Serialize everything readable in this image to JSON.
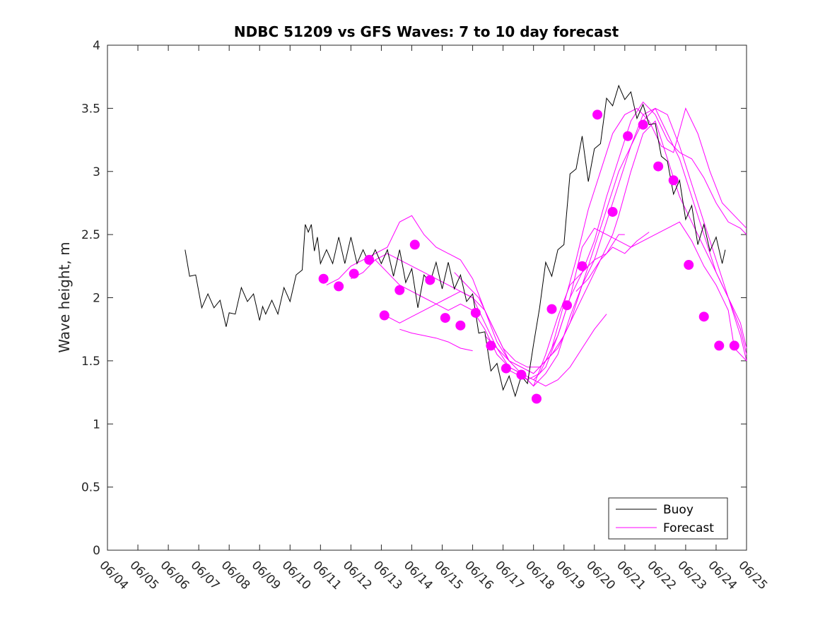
{
  "chart_data": {
    "type": "line",
    "title": "NDBC 51209 vs GFS Waves: 7 to 10 day forecast",
    "xlabel": "",
    "ylabel": "Wave height, m",
    "xlim": [
      "06/04",
      "06/25"
    ],
    "ylim": [
      0,
      4
    ],
    "x_ticks": [
      "06/04",
      "06/05",
      "06/06",
      "06/07",
      "06/08",
      "06/09",
      "06/10",
      "06/11",
      "06/12",
      "06/13",
      "06/14",
      "06/15",
      "06/16",
      "06/17",
      "06/18",
      "06/19",
      "06/20",
      "06/21",
      "06/22",
      "06/23",
      "06/24",
      "06/25"
    ],
    "y_ticks": [
      0,
      0.5,
      1,
      1.5,
      2,
      2.5,
      3,
      3.5,
      4
    ],
    "grid": false,
    "legend": {
      "position": "bottom-right",
      "entries": [
        {
          "label": "Buoy",
          "color": "#000000"
        },
        {
          "label": "Forecast",
          "color": "#ff00ff"
        }
      ]
    },
    "buoy": {
      "name": "Buoy",
      "color": "#000000",
      "x": [
        6.55,
        6.7,
        6.9,
        7.1,
        7.3,
        7.5,
        7.7,
        7.9,
        8.0,
        8.2,
        8.4,
        8.6,
        8.8,
        9.0,
        9.1,
        9.2,
        9.4,
        9.6,
        9.8,
        10.0,
        10.2,
        10.4,
        10.5,
        10.6,
        10.7,
        10.8,
        10.9,
        11.0,
        11.2,
        11.4,
        11.6,
        11.8,
        12.0,
        12.2,
        12.4,
        12.6,
        12.8,
        13.0,
        13.2,
        13.4,
        13.6,
        13.8,
        14.0,
        14.2,
        14.4,
        14.6,
        14.8,
        15.0,
        15.2,
        15.4,
        15.6,
        15.8,
        16.0,
        16.2,
        16.4,
        16.6,
        16.8,
        17.0,
        17.2,
        17.4,
        17.6,
        17.8,
        18.0,
        18.2,
        18.4,
        18.6,
        18.8,
        19.0,
        19.2,
        19.4,
        19.6,
        19.8,
        20.0,
        20.2,
        20.4,
        20.6,
        20.8,
        21.0,
        21.2,
        21.4,
        21.6,
        21.8,
        22.0,
        22.2,
        22.4,
        22.6,
        22.8,
        23.0,
        23.2,
        23.4,
        23.6,
        23.8,
        24.0,
        24.2,
        24.3
      ],
      "y": [
        2.3,
        2.25,
        2.1,
        2.0,
        1.95,
        2.0,
        1.9,
        1.85,
        1.8,
        1.95,
        2.0,
        2.05,
        1.95,
        1.9,
        1.85,
        1.95,
        1.9,
        1.95,
        2.0,
        2.05,
        2.1,
        2.3,
        2.5,
        2.6,
        2.5,
        2.45,
        2.4,
        2.35,
        2.3,
        2.35,
        2.4,
        2.35,
        2.4,
        2.35,
        2.3,
        2.35,
        2.3,
        2.35,
        2.3,
        2.25,
        2.3,
        2.2,
        2.15,
        2.0,
        2.1,
        2.2,
        2.2,
        2.15,
        2.2,
        2.15,
        2.1,
        2.05,
        1.95,
        1.8,
        1.65,
        1.5,
        1.4,
        1.35,
        1.3,
        1.3,
        1.3,
        1.4,
        1.55,
        2.0,
        2.2,
        2.25,
        2.3,
        2.5,
        2.9,
        3.1,
        3.2,
        3.0,
        3.1,
        3.3,
        3.5,
        3.6,
        3.6,
        3.65,
        3.55,
        3.5,
        3.45,
        3.45,
        3.3,
        3.2,
        3.0,
        2.9,
        2.85,
        2.7,
        2.65,
        2.5,
        2.5,
        2.45,
        2.4,
        2.35,
        2.3
      ]
    },
    "forecast_lines": [
      {
        "x": [
          11.2,
          11.6,
          12.0,
          12.4,
          12.8,
          13.2,
          13.6,
          14.0,
          14.4,
          14.8,
          15.2,
          15.6,
          16.0,
          16.4,
          16.8,
          17.2,
          17.6,
          18.0,
          18.4,
          18.8,
          19.2,
          19.6,
          20.0,
          20.4,
          20.8,
          21.0
        ],
        "y": [
          2.1,
          2.15,
          2.25,
          2.3,
          2.35,
          2.4,
          2.6,
          2.65,
          2.5,
          2.4,
          2.35,
          2.3,
          2.15,
          1.9,
          1.65,
          1.5,
          1.4,
          1.3,
          1.55,
          1.85,
          2.1,
          2.2,
          2.3,
          2.35,
          2.5,
          2.5
        ]
      },
      {
        "x": [
          12.0,
          12.4,
          12.8,
          13.2,
          13.6,
          14.0,
          14.4,
          14.8,
          15.2,
          15.6,
          16.0,
          16.4,
          16.8,
          17.2,
          17.6,
          18.0,
          18.4,
          18.8,
          19.2,
          19.6,
          20.0,
          20.4,
          20.8,
          21.2,
          21.6,
          22.0,
          22.4,
          22.8,
          23.2,
          23.6,
          24.0,
          24.4,
          24.6,
          25.0
        ],
        "y": [
          2.15,
          2.2,
          2.3,
          2.35,
          2.3,
          2.25,
          2.2,
          2.15,
          2.1,
          2.05,
          2.0,
          1.8,
          1.6,
          1.45,
          1.4,
          1.35,
          1.45,
          1.7,
          2.0,
          2.4,
          2.55,
          2.5,
          2.45,
          2.4,
          2.45,
          2.5,
          2.55,
          2.6,
          2.45,
          2.25,
          2.1,
          1.9,
          1.6,
          1.5
        ]
      },
      {
        "x": [
          12.8,
          13.2,
          13.6,
          14.0,
          14.4,
          14.8,
          15.2,
          15.6,
          16.0,
          16.4,
          16.8,
          17.2,
          17.6,
          18.0,
          18.4,
          18.8,
          19.2,
          19.6,
          20.0,
          20.4,
          20.8,
          21.2,
          21.6,
          22.0,
          22.4,
          22.8,
          23.2,
          23.6,
          24.0,
          24.4,
          24.8,
          25.0
        ],
        "y": [
          2.3,
          2.2,
          2.1,
          2.05,
          2.0,
          1.95,
          1.9,
          1.95,
          1.9,
          1.75,
          1.55,
          1.45,
          1.4,
          1.3,
          1.4,
          1.55,
          1.85,
          2.1,
          2.3,
          2.6,
          2.9,
          3.2,
          3.45,
          3.5,
          3.3,
          3.1,
          2.8,
          2.5,
          2.2,
          2.0,
          1.75,
          1.55
        ]
      },
      {
        "x": [
          13.2,
          13.6,
          14.0,
          14.4,
          14.8,
          15.2,
          15.6,
          16.0,
          16.4,
          16.8,
          17.2,
          17.6,
          18.0,
          18.4,
          18.8,
          19.2,
          19.6,
          20.0,
          20.4,
          20.8,
          21.2,
          21.6,
          22.0,
          22.4,
          22.8,
          23.2,
          23.6,
          24.0,
          24.4,
          24.8,
          25.0
        ],
        "y": [
          1.85,
          1.8,
          1.85,
          1.9,
          1.95,
          2.0,
          2.05,
          2.0,
          1.9,
          1.7,
          1.5,
          1.45,
          1.4,
          1.5,
          1.6,
          1.8,
          2.1,
          2.4,
          2.7,
          3.0,
          3.2,
          3.4,
          3.5,
          3.45,
          3.2,
          2.9,
          2.6,
          2.3,
          2.0,
          1.7,
          1.5
        ]
      },
      {
        "x": [
          13.6,
          14.0,
          14.4,
          14.8,
          15.2,
          15.6,
          16.0
        ],
        "y": [
          1.75,
          1.72,
          1.7,
          1.68,
          1.65,
          1.6,
          1.58
        ]
      },
      {
        "x": [
          15.4,
          15.8,
          16.2,
          16.6,
          17.0,
          17.4,
          17.8,
          18.2,
          18.6,
          19.0,
          19.4,
          19.8,
          20.2,
          20.6,
          20.8,
          21.2,
          21.6,
          22.0,
          22.4,
          22.8,
          23.2,
          23.6,
          24.0,
          24.4,
          24.8,
          25.0
        ],
        "y": [
          2.2,
          2.1,
          2.0,
          1.8,
          1.6,
          1.5,
          1.45,
          1.45,
          1.55,
          1.7,
          1.9,
          2.1,
          2.3,
          2.5,
          2.65,
          3.0,
          3.3,
          3.4,
          3.1,
          2.8,
          2.6,
          2.4,
          2.2,
          2.0,
          1.8,
          1.6
        ]
      },
      {
        "x": [
          16.4,
          16.8,
          17.2,
          17.6,
          18.0,
          18.4,
          18.8,
          19.2,
          19.6,
          20.0,
          20.4,
          20.8,
          21.2,
          21.6,
          22.0,
          22.4,
          22.8,
          23.2,
          23.6,
          24.0,
          24.4,
          24.8,
          25.0
        ],
        "y": [
          1.7,
          1.6,
          1.5,
          1.45,
          1.4,
          1.5,
          1.7,
          2.0,
          2.2,
          2.45,
          2.8,
          3.1,
          3.4,
          3.55,
          3.45,
          3.25,
          3.15,
          3.1,
          2.95,
          2.75,
          2.6,
          2.55,
          2.5
        ]
      },
      {
        "x": [
          17.0,
          17.4,
          17.8,
          18.2,
          18.6,
          19.0,
          19.4,
          19.8,
          20.2,
          20.6,
          21.0,
          21.4,
          21.8,
          22.2,
          22.6,
          23.0,
          23.4,
          23.8,
          24.2,
          24.6,
          25.0
        ],
        "y": [
          1.45,
          1.4,
          1.35,
          1.4,
          1.6,
          1.95,
          2.3,
          2.7,
          3.0,
          3.3,
          3.45,
          3.5,
          3.4,
          3.2,
          3.15,
          3.5,
          3.3,
          3.0,
          2.75,
          2.65,
          2.55
        ]
      },
      {
        "x": [
          18.0,
          18.4,
          18.8,
          19.2,
          19.6,
          20.0,
          20.4
        ],
        "y": [
          1.35,
          1.3,
          1.35,
          1.45,
          1.6,
          1.75,
          1.87
        ]
      },
      {
        "x": [
          19.4,
          19.8,
          20.2,
          20.6,
          21.0,
          21.4,
          21.8
        ],
        "y": [
          2.05,
          2.15,
          2.3,
          2.4,
          2.35,
          2.45,
          2.52
        ]
      }
    ],
    "forecast_points": {
      "name": "Forecast",
      "color": "#ff00ff",
      "x": [
        11.1,
        11.6,
        12.1,
        12.6,
        13.1,
        13.6,
        14.1,
        14.6,
        15.1,
        15.6,
        16.1,
        16.6,
        17.1,
        17.6,
        18.1,
        18.6,
        19.1,
        19.6,
        20.1,
        20.6,
        21.1,
        21.6,
        22.1,
        22.6,
        23.1,
        23.6,
        24.1,
        24.6
      ],
      "y": [
        2.15,
        2.09,
        2.19,
        2.3,
        1.86,
        2.06,
        2.42,
        2.14,
        1.84,
        1.78,
        1.88,
        1.62,
        1.44,
        1.39,
        1.2,
        1.91,
        1.94,
        2.25,
        3.45,
        2.68,
        3.28,
        3.37,
        3.04,
        2.93,
        2.26,
        1.85,
        1.62,
        1.62
      ]
    }
  }
}
